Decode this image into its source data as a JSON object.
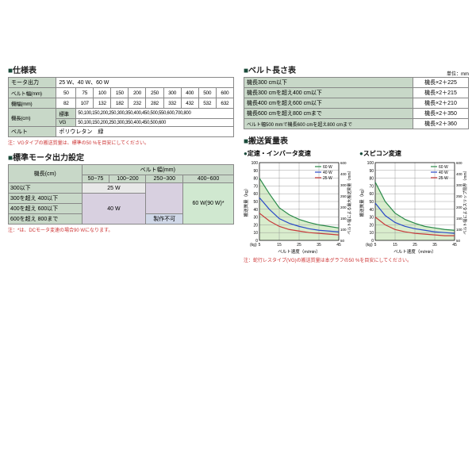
{
  "spec": {
    "title": "■仕様表",
    "rows": [
      {
        "label": "モータ出力",
        "cells": [
          "25 W、40 W、60 W"
        ]
      },
      {
        "label": "ベルト幅(mm)",
        "cells": [
          "50",
          "75",
          "100",
          "150",
          "200",
          "250",
          "300",
          "400",
          "500",
          "600"
        ]
      },
      {
        "label": "機幅(mm)",
        "cells": [
          "82",
          "107",
          "132",
          "182",
          "232",
          "282",
          "332",
          "432",
          "532",
          "632"
        ]
      },
      {
        "label": "機長(cm)",
        "sub1": "標準",
        "sub1cells": "50,100,150,200,250,300,350,400,450,500,550,600,700,800",
        "sub2": "VG",
        "sub2cells": "50,100,150,200,250,300,350,400,450,500,600"
      },
      {
        "label": "ベルト",
        "cells": [
          "ポリウレタン　緑"
        ]
      }
    ],
    "note": "注：VGタイプの搬送質量は、標準の50 %を目安にしてください。"
  },
  "motor": {
    "title": "■標準モータ出力設定",
    "col_hdr": "ベルト幅(mm)",
    "row_hdr": "機長(cm)",
    "cols": [
      "50~75",
      "100~200",
      "250~300",
      "400~600"
    ],
    "rows": [
      "300以下",
      "300を超え 400以下",
      "400を超え 600以下",
      "600を超え 800まで"
    ],
    "v25": "25 W",
    "v40": "40 W",
    "v60": "60 W(90 W)*",
    "vna": "製作不可",
    "note": "注：*は、DCモータ変速の場合90 Wになります。"
  },
  "belt_len": {
    "title": "■ベルト長さ表",
    "unit": "単位：mm",
    "rows": [
      [
        "機長300 cm以下",
        "機長×2＋225"
      ],
      [
        "機長300 cmを超え400 cm以下",
        "機長×2＋215"
      ],
      [
        "機長400 cmを超え600 cm以下",
        "機長×2＋210"
      ],
      [
        "機長600 cmを超え800 cmまで",
        "機長×2＋350"
      ],
      [
        "ベルト幅500 mmで機長600 cmを超え800 cmまで",
        "機長×2＋360"
      ]
    ]
  },
  "mass": {
    "title": "■搬送質量表",
    "chart1_title": "●定速・インバータ変速",
    "chart2_title": "●スピコン変速",
    "xlabel": "ベルト速度（m/min）",
    "ylabel_l": "搬送質量（kg）",
    "ylabel_r": "ベルト幅による最大搬送質量（mm）",
    "ylabel2_r": "ベルト幅によるスリップ限界（mm）",
    "legend": [
      {
        "c": "#2a8a4a",
        "t": "60 W"
      },
      {
        "c": "#2a4ac8",
        "t": "40 W"
      },
      {
        "c": "#c83a3a",
        "t": "25 W"
      }
    ],
    "yticks": [
      0,
      10,
      20,
      30,
      40,
      50,
      60,
      70,
      80,
      90,
      100
    ],
    "xticks": [
      5,
      15,
      25,
      35,
      45
    ],
    "rticks": [
      50,
      100,
      150,
      200,
      250,
      300,
      400,
      600
    ],
    "chart1": {
      "bg": "#ffffff",
      "grid": "#888",
      "fill": "#d0e8c0",
      "s60": {
        "c": "#2a8a4a",
        "pts": [
          [
            5,
            80
          ],
          [
            10,
            60
          ],
          [
            15,
            42
          ],
          [
            20,
            33
          ],
          [
            25,
            27
          ],
          [
            30,
            23
          ],
          [
            35,
            20
          ],
          [
            40,
            18
          ],
          [
            45,
            16
          ]
        ]
      },
      "s40": {
        "c": "#2a4ac8",
        "pts": [
          [
            5,
            55
          ],
          [
            10,
            40
          ],
          [
            15,
            28
          ],
          [
            20,
            22
          ],
          [
            25,
            18
          ],
          [
            30,
            15
          ],
          [
            35,
            13
          ],
          [
            40,
            12
          ],
          [
            45,
            11
          ]
        ]
      },
      "s25": {
        "c": "#c83a3a",
        "pts": [
          [
            5,
            35
          ],
          [
            10,
            25
          ],
          [
            15,
            18
          ],
          [
            20,
            14
          ],
          [
            25,
            12
          ],
          [
            30,
            10
          ],
          [
            35,
            9
          ],
          [
            40,
            8
          ],
          [
            45,
            7
          ]
        ]
      }
    },
    "chart2": {
      "bg": "#ffffff",
      "grid": "#888",
      "fill": "#d0e8c0",
      "s60": {
        "c": "#2a8a4a",
        "pts": [
          [
            5,
            75
          ],
          [
            10,
            50
          ],
          [
            15,
            35
          ],
          [
            20,
            27
          ],
          [
            25,
            22
          ],
          [
            30,
            18
          ],
          [
            35,
            16
          ],
          [
            40,
            14
          ],
          [
            45,
            13
          ]
        ]
      },
      "s40": {
        "c": "#2a4ac8",
        "pts": [
          [
            5,
            48
          ],
          [
            10,
            32
          ],
          [
            15,
            23
          ],
          [
            20,
            18
          ],
          [
            25,
            15
          ],
          [
            30,
            13
          ],
          [
            35,
            11
          ],
          [
            40,
            10
          ],
          [
            45,
            9
          ]
        ]
      },
      "s25": {
        "c": "#c83a3a",
        "pts": [
          [
            5,
            30
          ],
          [
            10,
            20
          ],
          [
            15,
            14
          ],
          [
            20,
            11
          ],
          [
            25,
            9
          ],
          [
            30,
            8
          ],
          [
            35,
            7
          ],
          [
            40,
            6
          ],
          [
            45,
            6
          ]
        ]
      }
    },
    "note": "注：蛇行レスタイプ(VG)の搬送質量は本グラフの50 %を目安にしてください。"
  }
}
